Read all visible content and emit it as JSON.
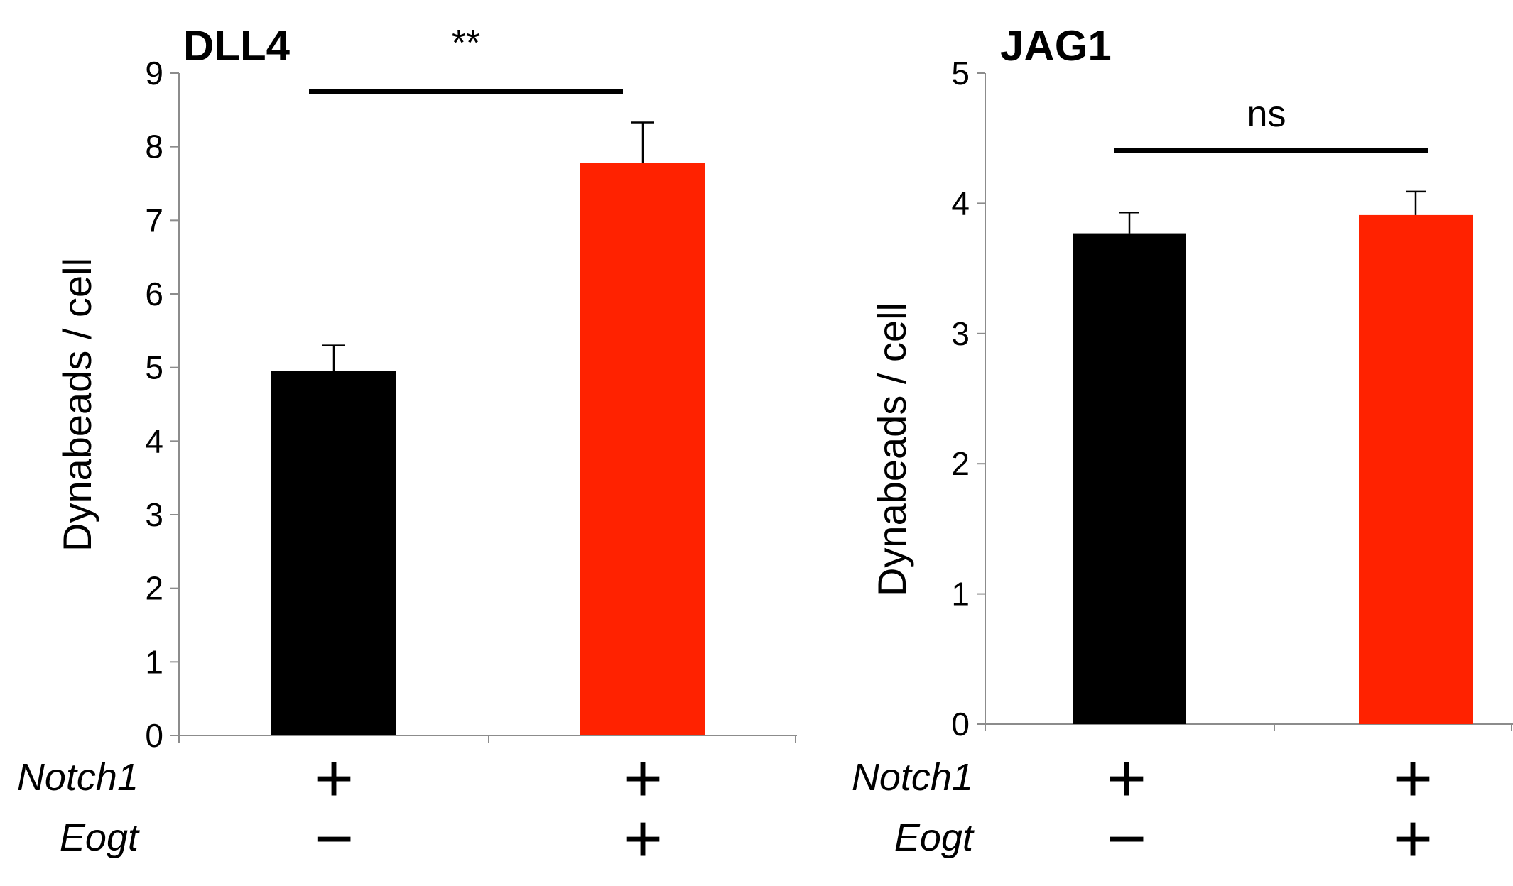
{
  "chart_data": [
    {
      "type": "bar",
      "title": "DLL4",
      "ylabel": "Dynabeads / cell",
      "ylim": [
        0,
        9
      ],
      "yticks": [
        "0",
        "1",
        "2",
        "3",
        "4",
        "5",
        "6",
        "7",
        "8",
        "9"
      ],
      "categories": [
        "Notch1 + / Eogt −",
        "Notch1 + / Eogt +"
      ],
      "values": [
        4.95,
        7.78
      ],
      "errors": [
        0.35,
        0.55
      ],
      "bar_colors": [
        "#000000",
        "#ff2200"
      ],
      "significance": "**",
      "row_labels": [
        "Notch1",
        "Eogt"
      ],
      "row_signs": [
        [
          "+",
          "+"
        ],
        [
          "−",
          "+"
        ]
      ]
    },
    {
      "type": "bar",
      "title": "JAG1",
      "ylabel": "Dynabeads / cell",
      "ylim": [
        0,
        5
      ],
      "yticks": [
        "0",
        "1",
        "2",
        "3",
        "4",
        "5"
      ],
      "categories": [
        "Notch1 + / Eogt −",
        "Notch1 + / Eogt +"
      ],
      "values": [
        3.77,
        3.91
      ],
      "errors": [
        0.16,
        0.18
      ],
      "bar_colors": [
        "#000000",
        "#ff2200"
      ],
      "significance": "ns",
      "row_labels": [
        "Notch1",
        "Eogt"
      ],
      "row_signs": [
        [
          "+",
          "+"
        ],
        [
          "−",
          "+"
        ]
      ]
    }
  ]
}
